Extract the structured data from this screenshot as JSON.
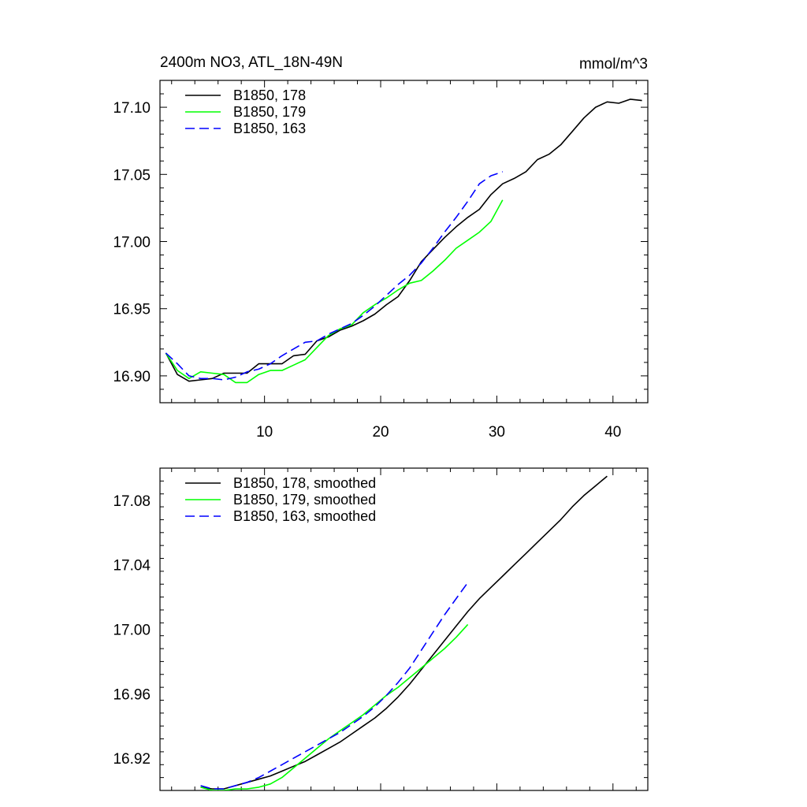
{
  "chart_data": [
    {
      "type": "line",
      "title": "2400m NO3, ATL_18N-49N",
      "units": "mmol/m^3",
      "xlim": [
        1,
        43
      ],
      "ylim": [
        16.88,
        17.12
      ],
      "xticks": [
        10,
        20,
        30,
        40
      ],
      "xtick_labels": [
        "10",
        "20",
        "30",
        "40"
      ],
      "yticks": [
        16.9,
        16.95,
        17.0,
        17.05,
        17.1
      ],
      "ytick_labels": [
        "16.90",
        "16.95",
        "17.00",
        "17.05",
        "17.10"
      ],
      "legend_position": "top-left",
      "series": [
        {
          "name": "B1850, 178",
          "color": "#000000",
          "dash": "solid",
          "x": [
            1.5,
            2.5,
            3.5,
            4.5,
            5.5,
            6.5,
            7.5,
            8.5,
            9.5,
            10.5,
            11.5,
            12.5,
            13.5,
            14.5,
            15.5,
            16.5,
            17.5,
            18.5,
            19.5,
            20.5,
            21.5,
            22.5,
            23.5,
            24.5,
            25.5,
            26.5,
            27.5,
            28.5,
            29.5,
            30.5,
            31.5,
            32.5,
            33.5,
            34.5,
            35.5,
            36.5,
            37.5,
            38.5,
            39.5,
            40.5,
            41.5,
            42.5
          ],
          "y": [
            16.917,
            16.901,
            16.896,
            16.897,
            16.898,
            16.902,
            16.902,
            16.902,
            16.909,
            16.909,
            16.909,
            16.915,
            16.916,
            16.926,
            16.929,
            16.934,
            16.937,
            16.941,
            16.946,
            16.953,
            16.959,
            16.971,
            16.985,
            16.994,
            17.003,
            17.011,
            17.018,
            17.024,
            17.035,
            17.043,
            17.047,
            17.052,
            17.061,
            17.065,
            17.072,
            17.082,
            17.092,
            17.1,
            17.104,
            17.103,
            17.106,
            17.105
          ]
        },
        {
          "name": "B1850, 179",
          "color": "#00ff00",
          "dash": "solid",
          "x": [
            1.5,
            2.5,
            3.5,
            4.5,
            5.5,
            6.5,
            7.5,
            8.5,
            9.5,
            10.5,
            11.5,
            12.5,
            13.5,
            14.5,
            15.5,
            16.5,
            17.5,
            18.5,
            19.5,
            20.5,
            21.5,
            22.5,
            23.5,
            24.5,
            25.5,
            26.5,
            27.5,
            28.5,
            29.5,
            30.5
          ],
          "y": [
            16.917,
            16.904,
            16.898,
            16.903,
            16.902,
            16.901,
            16.895,
            16.895,
            16.901,
            16.904,
            16.904,
            16.908,
            16.912,
            16.921,
            16.93,
            16.935,
            16.938,
            16.947,
            16.953,
            16.958,
            16.964,
            16.969,
            16.971,
            16.978,
            16.986,
            16.995,
            17.001,
            17.007,
            17.015,
            17.031
          ]
        },
        {
          "name": "B1850, 163",
          "color": "#0000ff",
          "dash": "dashed",
          "x": [
            1.5,
            2.5,
            3.5,
            4.5,
            5.5,
            6.5,
            7.5,
            8.5,
            9.5,
            10.5,
            11.5,
            12.5,
            13.5,
            14.5,
            15.5,
            16.5,
            17.5,
            18.5,
            19.5,
            20.5,
            21.5,
            22.5,
            23.5,
            24.5,
            25.5,
            26.5,
            27.5,
            28.5,
            29.5,
            30.5
          ],
          "y": [
            16.917,
            16.909,
            16.9,
            16.898,
            16.898,
            16.897,
            16.899,
            16.903,
            16.905,
            16.909,
            16.915,
            16.92,
            16.925,
            16.926,
            16.931,
            16.935,
            16.939,
            16.945,
            16.952,
            16.96,
            16.968,
            16.975,
            16.984,
            16.995,
            17.007,
            17.018,
            17.03,
            17.043,
            17.049,
            17.052
          ]
        }
      ]
    },
    {
      "type": "line",
      "xlim": [
        1,
        43
      ],
      "ylim": [
        16.9,
        17.1
      ],
      "xticks": [
        10,
        20,
        30,
        40
      ],
      "yticks": [
        16.92,
        16.96,
        17.0,
        17.04,
        17.08
      ],
      "ytick_labels": [
        "16.92",
        "16.96",
        "17.00",
        "17.04",
        "17.08"
      ],
      "legend_position": "top-left",
      "series": [
        {
          "name": "B1850, 178, smoothed",
          "color": "#000000",
          "dash": "solid",
          "x": [
            4.5,
            5.5,
            6.5,
            7.5,
            8.5,
            9.5,
            10.5,
            11.5,
            12.5,
            13.5,
            14.5,
            15.5,
            16.5,
            17.5,
            18.5,
            19.5,
            20.5,
            21.5,
            22.5,
            23.5,
            24.5,
            25.5,
            26.5,
            27.5,
            28.5,
            29.5,
            30.5,
            31.5,
            32.5,
            33.5,
            34.5,
            35.5,
            36.5,
            37.5,
            38.5,
            39.5
          ],
          "y": [
            16.902,
            16.901,
            16.901,
            16.903,
            16.905,
            16.907,
            16.909,
            16.912,
            16.915,
            16.918,
            16.922,
            16.926,
            16.93,
            16.935,
            16.94,
            16.945,
            16.951,
            16.958,
            16.966,
            16.975,
            16.984,
            16.993,
            17.002,
            17.011,
            17.019,
            17.026,
            17.033,
            17.04,
            17.047,
            17.054,
            17.061,
            17.068,
            17.076,
            17.083,
            17.089,
            17.095
          ]
        },
        {
          "name": "B1850, 179, smoothed",
          "color": "#00ff00",
          "dash": "solid",
          "x": [
            4.5,
            5.5,
            6.5,
            7.5,
            8.5,
            9.5,
            10.5,
            11.5,
            12.5,
            13.5,
            14.5,
            15.5,
            16.5,
            17.5,
            18.5,
            19.5,
            20.5,
            21.5,
            22.5,
            23.5,
            24.5,
            25.5,
            26.5,
            27.5
          ],
          "y": [
            16.902,
            16.9,
            16.9,
            16.901,
            16.901,
            16.902,
            16.904,
            16.908,
            16.914,
            16.92,
            16.926,
            16.932,
            16.937,
            16.942,
            16.947,
            16.953,
            16.959,
            16.964,
            16.97,
            16.976,
            16.982,
            16.988,
            16.995,
            17.003
          ]
        },
        {
          "name": "B1850, 163, smoothed",
          "color": "#0000ff",
          "dash": "dashed",
          "x": [
            4.5,
            5.5,
            6.5,
            7.5,
            8.5,
            9.5,
            10.5,
            11.5,
            12.5,
            13.5,
            14.5,
            15.5,
            16.5,
            17.5,
            18.5,
            19.5,
            20.5,
            21.5,
            22.5,
            23.5,
            24.5,
            25.5,
            26.5,
            27.5
          ],
          "y": [
            16.903,
            16.901,
            16.901,
            16.903,
            16.905,
            16.908,
            16.912,
            16.916,
            16.92,
            16.924,
            16.928,
            16.932,
            16.936,
            16.941,
            16.946,
            16.952,
            16.959,
            16.967,
            16.976,
            16.987,
            16.998,
            17.009,
            17.019,
            17.029
          ]
        }
      ]
    }
  ]
}
